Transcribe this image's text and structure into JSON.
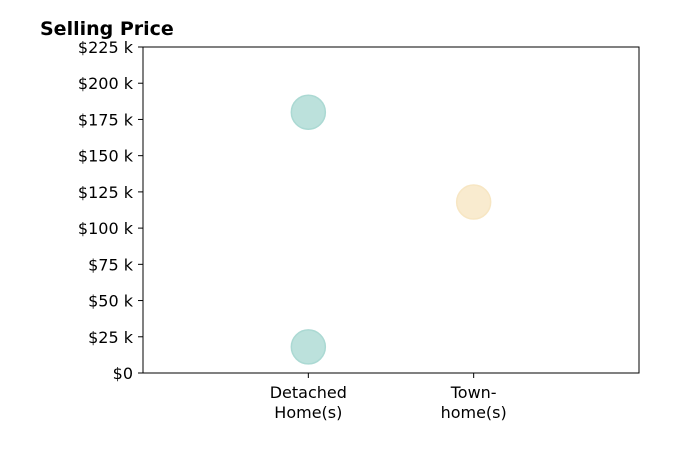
{
  "chart_data": {
    "type": "scatter",
    "title": "Selling Price",
    "xlabel": "",
    "ylabel": "",
    "categories": [
      [
        "Detached",
        "Home(s)"
      ],
      [
        "Town-",
        "home(s)"
      ]
    ],
    "y_ticks": [
      "$0",
      "$25 k",
      "$50 k",
      "$75 k",
      "$100 k",
      "$125 k",
      "$150 k",
      "$175 k",
      "$200 k",
      "$225 k"
    ],
    "y_tick_values": [
      0,
      25000,
      50000,
      75000,
      100000,
      125000,
      150000,
      175000,
      200000,
      225000
    ],
    "ylim": [
      0,
      225000
    ],
    "xlim": [
      -1,
      2
    ],
    "grid": false,
    "points": [
      {
        "category_index": 0,
        "y": 180000,
        "color": "#abd9d3"
      },
      {
        "category_index": 0,
        "y": 18000,
        "color": "#abd9d3"
      },
      {
        "category_index": 1,
        "y": 118000,
        "color": "#f7e6c3"
      }
    ],
    "colors": {
      "Detached Home(s)": "#abd9d3",
      "Townhome(s)": "#f7e6c3"
    }
  }
}
